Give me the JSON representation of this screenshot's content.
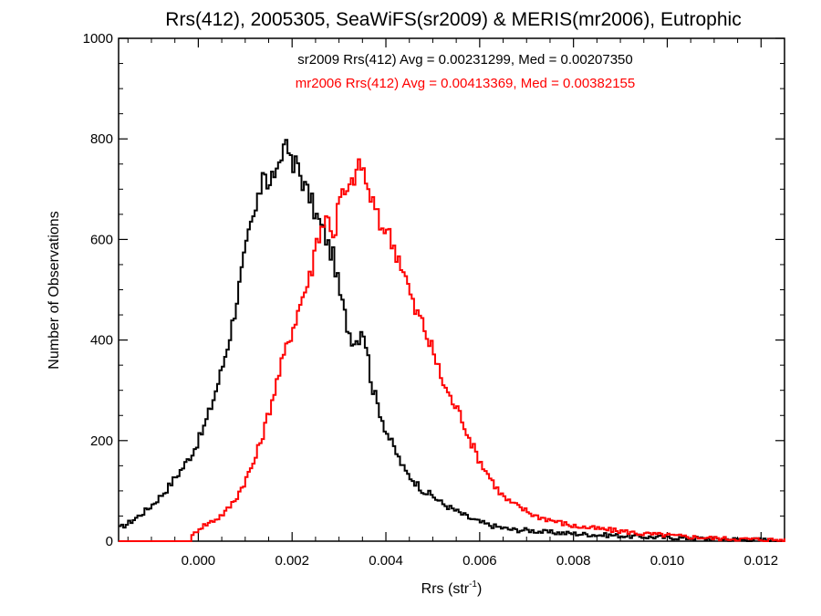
{
  "chart_data": {
    "type": "line",
    "style": "step-histogram",
    "title": "Rrs(412), 2005305, SeaWiFS(sr2009) & MERIS(mr2006), Eutrophic",
    "xlabel": "Rrs (str",
    "xlabel_sup": "-1",
    "xlabel_close": ")",
    "ylabel": "Number of Observations",
    "xlim": [
      -0.0017,
      0.0125
    ],
    "ylim": [
      0,
      1000
    ],
    "xticks": [
      0.0,
      0.002,
      0.004,
      0.006,
      0.008,
      0.01,
      0.012
    ],
    "xtick_labels": [
      "0.000",
      "0.002",
      "0.004",
      "0.006",
      "0.008",
      "0.010",
      "0.012"
    ],
    "yticks": [
      0,
      200,
      400,
      600,
      800,
      1000
    ],
    "ytick_labels": [
      "0",
      "200",
      "400",
      "600",
      "800",
      "1000"
    ],
    "grid": false,
    "legend": "none",
    "annotations": [
      {
        "text": "sr2009 Rrs(412) Avg = 0.00231299, Med = 0.00207350",
        "color": "#000000"
      },
      {
        "text": "mr2006 Rrs(412) Avg = 0.00413369, Med = 0.00382155",
        "color": "#ff0000"
      }
    ],
    "series": [
      {
        "color": "#000000",
        "x": [
          -0.0017,
          -0.0015,
          -0.0013,
          -0.0011,
          -0.0009,
          -0.0007,
          -0.0005,
          -0.0003,
          -0.0001,
          0.0001,
          0.0003,
          0.0005,
          0.0007,
          0.0009,
          0.0011,
          0.0013,
          0.0014,
          0.0015,
          0.0016,
          0.0017,
          0.0018,
          0.0019,
          0.002,
          0.0021,
          0.0022,
          0.0023,
          0.0024,
          0.0025,
          0.0026,
          0.0027,
          0.0028,
          0.0029,
          0.003,
          0.0031,
          0.0032,
          0.0033,
          0.0034,
          0.0035,
          0.0036,
          0.0037,
          0.0038,
          0.0039,
          0.004,
          0.0042,
          0.0044,
          0.0046,
          0.0048,
          0.005,
          0.0052,
          0.0054,
          0.0056,
          0.0058,
          0.006,
          0.0062,
          0.0064,
          0.0066,
          0.0068,
          0.007,
          0.0072,
          0.0074,
          0.0076,
          0.0078,
          0.008,
          0.0082,
          0.0084,
          0.0086,
          0.0088,
          0.009,
          0.0092,
          0.0094,
          0.0096,
          0.0098,
          0.01,
          0.0102,
          0.0104,
          0.0106,
          0.0108,
          0.011,
          0.0112,
          0.0114,
          0.0116,
          0.0118,
          0.012,
          0.0122,
          0.0125
        ],
        "y": [
          25,
          35,
          48,
          62,
          80,
          100,
          125,
          150,
          180,
          220,
          275,
          340,
          420,
          520,
          620,
          680,
          760,
          690,
          740,
          720,
          780,
          810,
          730,
          760,
          720,
          700,
          680,
          650,
          630,
          610,
          580,
          560,
          500,
          460,
          420,
          400,
          400,
          430,
          380,
          310,
          280,
          250,
          220,
          180,
          140,
          120,
          100,
          90,
          75,
          65,
          55,
          45,
          38,
          32,
          28,
          24,
          22,
          22,
          20,
          18,
          17,
          16,
          15,
          14,
          13,
          12,
          12,
          11,
          10,
          9,
          8,
          8,
          7,
          7,
          6,
          6,
          5,
          5,
          4,
          4,
          3,
          3,
          3,
          2,
          2
        ]
      },
      {
        "color": "#ff0000",
        "x": [
          -0.0017,
          -0.001,
          -0.0004,
          -0.0002,
          0.0,
          0.0002,
          0.0004,
          0.0006,
          0.0008,
          0.001,
          0.0012,
          0.0014,
          0.0016,
          0.0018,
          0.002,
          0.0022,
          0.0024,
          0.0025,
          0.0026,
          0.0027,
          0.0028,
          0.0029,
          0.003,
          0.0031,
          0.0032,
          0.0033,
          0.0034,
          0.0035,
          0.0036,
          0.0037,
          0.0038,
          0.0039,
          0.004,
          0.0041,
          0.0042,
          0.0043,
          0.0044,
          0.0045,
          0.0046,
          0.0047,
          0.0048,
          0.0049,
          0.005,
          0.0052,
          0.0054,
          0.0056,
          0.0058,
          0.006,
          0.0062,
          0.0064,
          0.0066,
          0.0068,
          0.007,
          0.0072,
          0.0074,
          0.0076,
          0.0078,
          0.008,
          0.0082,
          0.0084,
          0.0086,
          0.0088,
          0.009,
          0.0092,
          0.0094,
          0.0096,
          0.0098,
          0.01,
          0.0102,
          0.0104,
          0.0106,
          0.0108,
          0.011,
          0.0112,
          0.0114,
          0.0116,
          0.0118,
          0.012,
          0.0122,
          0.0125
        ],
        "y": [
          0,
          0,
          0,
          0,
          25,
          35,
          45,
          60,
          85,
          120,
          160,
          220,
          290,
          360,
          420,
          480,
          530,
          590,
          620,
          640,
          640,
          600,
          680,
          690,
          690,
          720,
          740,
          750,
          700,
          680,
          650,
          620,
          630,
          600,
          580,
          560,
          530,
          500,
          460,
          450,
          430,
          400,
          380,
          320,
          280,
          250,
          200,
          160,
          130,
          100,
          80,
          70,
          60,
          50,
          45,
          40,
          35,
          30,
          28,
          26,
          24,
          22,
          20,
          18,
          15,
          14,
          13,
          12,
          10,
          9,
          8,
          7,
          6,
          5,
          5,
          4,
          4,
          3,
          3,
          2
        ]
      }
    ]
  }
}
